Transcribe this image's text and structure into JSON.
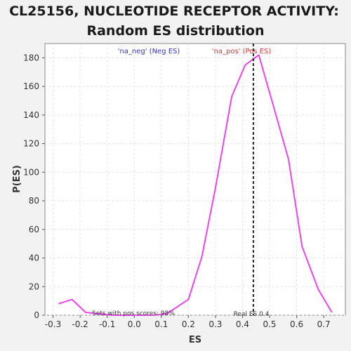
{
  "chart_data": {
    "type": "line",
    "title_line1": "CL25156, NUCLEOTIDE RECEPTOR ACTIVITY:",
    "title_line2": "Random ES distribution",
    "xlabel": "ES",
    "ylabel": "P(ES)",
    "xlim": [
      -0.33,
      0.78
    ],
    "ylim": [
      0,
      190
    ],
    "xticks": [
      -0.3,
      -0.2,
      -0.1,
      0.0,
      0.1,
      0.2,
      0.3,
      0.4,
      0.5,
      0.6,
      0.7
    ],
    "xtick_labels": [
      "-0.3",
      "-0.2",
      "-0.1",
      "0.0",
      "0.1",
      "0.2",
      "0.3",
      "0.4",
      "0.5",
      "0.6",
      "0.7"
    ],
    "yticks": [
      0,
      20,
      40,
      60,
      80,
      100,
      120,
      140,
      160,
      180
    ],
    "ytick_labels": [
      "0",
      "20",
      "40",
      "60",
      "80",
      "100",
      "120",
      "140",
      "160",
      "180"
    ],
    "grid": true,
    "series": [
      {
        "color": "#ee44ee",
        "x": [
          -0.28,
          -0.23,
          -0.18,
          -0.13,
          -0.08,
          -0.03,
          0.02,
          0.07,
          0.12,
          0.2,
          0.25,
          0.3,
          0.36,
          0.41,
          0.46,
          0.51,
          0.57,
          0.62,
          0.68,
          0.73
        ],
        "y": [
          8,
          11,
          2,
          1,
          0,
          0,
          0,
          0,
          1,
          11,
          41,
          89,
          153,
          175,
          182,
          149,
          109,
          48,
          18,
          2
        ]
      }
    ],
    "legend": {
      "neg_label": "'na_neg' (Neg ES)",
      "neg_color": "#3333cc",
      "pos_label": "'na_pos' (Pos ES)",
      "pos_color": "#dd3333"
    },
    "real_es": {
      "x": 0.44,
      "label": "Real ES 0.4"
    },
    "annotation": "Sets with pos scores: 98%"
  }
}
